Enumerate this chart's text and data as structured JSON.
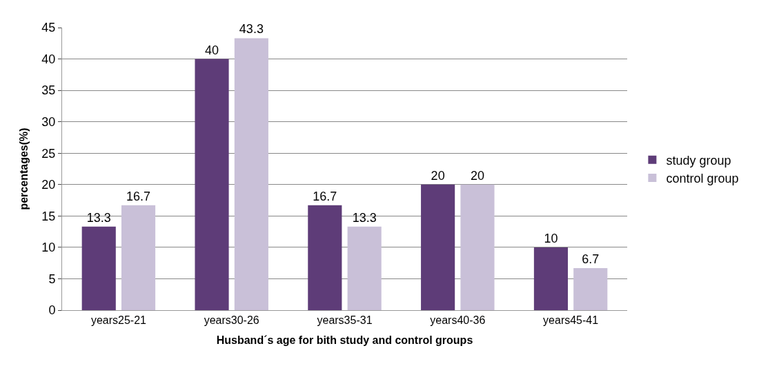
{
  "chart_data": {
    "type": "bar",
    "categories": [
      "years25-21",
      "years30-26",
      "years35-31",
      "years40-36",
      "years45-41"
    ],
    "series": [
      {
        "name": "study group",
        "color": "#5e3c78",
        "values": [
          13.3,
          40,
          16.7,
          20,
          10
        ]
      },
      {
        "name": "control group",
        "color": "#c9c0d8",
        "values": [
          16.7,
          43.3,
          13.3,
          20,
          6.7
        ]
      }
    ],
    "xlabel": "Husband´s age for bith study and control groups",
    "ylabel": "percentages(%)",
    "ylim": [
      0,
      45
    ],
    "yticks": [
      0,
      5,
      10,
      15,
      20,
      25,
      30,
      35,
      40,
      45
    ],
    "grid": "y",
    "legend": "right",
    "data_labels": true
  }
}
